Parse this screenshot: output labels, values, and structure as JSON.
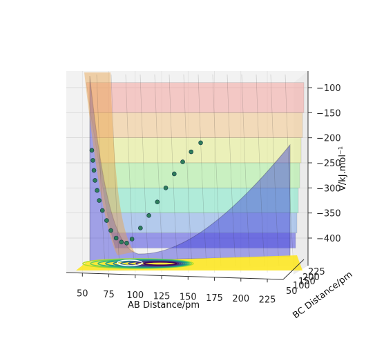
{
  "chart_data": {
    "type": "surface-3d",
    "title": "",
    "xlabel": "AB Distance/pm",
    "ylabel": "BC Distance/pm",
    "zlabel": "V/kJ.mol$^{-1}$",
    "zlabel_display": "V/kJ.mol⁻¹",
    "xlim": [
      40,
      240
    ],
    "ylim": [
      50,
      240
    ],
    "zlim": [
      -440,
      -90
    ],
    "x_ticks": [
      "50",
      "75",
      "100",
      "125",
      "150",
      "175",
      "200",
      "225"
    ],
    "y_ticks": [
      "50",
      "100",
      "150",
      "200",
      "225"
    ],
    "z_ticks": [
      "-100",
      "-150",
      "-200",
      "-250",
      "-300",
      "-350",
      "-400"
    ],
    "z_tick_display": [
      "−100",
      "−150",
      "−200",
      "−250",
      "−300",
      "−350",
      "−400"
    ],
    "colormap": "viridis",
    "surface_alpha": 0.4,
    "contour_floor": true,
    "grid": true,
    "trajectory": {
      "color": "#2e7d5b",
      "marker": "o",
      "description": "reaction path of AB distance vs energy from approx (72,-225) down to minimum near (105,-410) then up to (175,-210)",
      "x": [
        72,
        73,
        74,
        75,
        77,
        79,
        82,
        86,
        90,
        95,
        100,
        105,
        110,
        118,
        126,
        134,
        142,
        150,
        158,
        166,
        175
      ],
      "z": [
        -225,
        -245,
        -265,
        -285,
        -305,
        -325,
        -345,
        -365,
        -385,
        -400,
        -408,
        -410,
        -402,
        -380,
        -355,
        -328,
        -300,
        -272,
        -248,
        -228,
        -210
      ]
    }
  }
}
